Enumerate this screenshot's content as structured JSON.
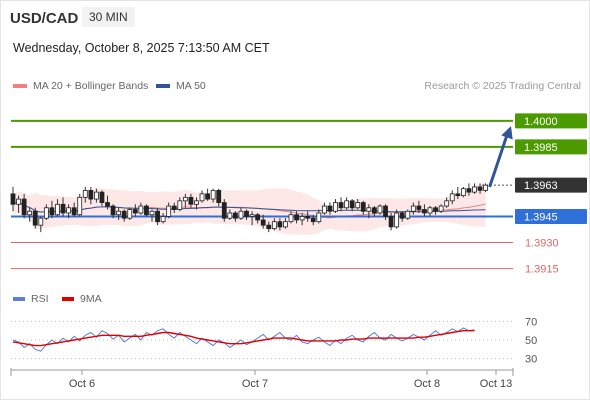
{
  "header": {
    "symbol": "USD/CAD",
    "interval": "30 MIN",
    "datetime": "Wednesday, October 8, 2025 7:13:50 AM CET",
    "credit": "Research © 2025 Trading Central"
  },
  "legend": {
    "ma20_label": "MA 20 + Bollinger Bands",
    "ma20_color": "#f08080",
    "ma50_label": "MA 50",
    "ma50_color": "#2f5597"
  },
  "rsi_legend": {
    "rsi_label": "RSI",
    "rsi_color": "#5b7fd6",
    "ma9_label": "9MA",
    "ma9_color": "#e00000"
  },
  "chart_data": [
    {
      "type": "candlestick",
      "ylim": [
        1.3905,
        1.4012
      ],
      "current_price": 1.3963,
      "x_ticks": [
        "Oct 6",
        "Oct 7",
        "Oct 8",
        "Oct 13"
      ],
      "levels": [
        {
          "label": "1.4000",
          "value": 1.4,
          "kind": "resistance",
          "color": "#4a9a00"
        },
        {
          "label": "1.3985",
          "value": 1.3985,
          "kind": "resistance",
          "color": "#4a9a00"
        },
        {
          "label": "1.3963",
          "value": 1.3963,
          "kind": "current",
          "color": "#333333"
        },
        {
          "label": "1.3945",
          "value": 1.3945,
          "kind": "pivot",
          "color": "#2e6fd8"
        },
        {
          "label": "1.3930",
          "value": 1.393,
          "kind": "support",
          "color": "#e06666"
        },
        {
          "label": "1.3915",
          "value": 1.3915,
          "kind": "support",
          "color": "#e06666"
        }
      ],
      "arrow": {
        "from": 1.3962,
        "to": 1.3997,
        "direction": "up"
      },
      "candles": [
        [
          1.3958,
          1.3962,
          1.3948,
          1.3952
        ],
        [
          1.3952,
          1.3957,
          1.3947,
          1.3955
        ],
        [
          1.3955,
          1.3958,
          1.3944,
          1.3946
        ],
        [
          1.3946,
          1.395,
          1.3942,
          1.3948
        ],
        [
          1.3948,
          1.395,
          1.3938,
          1.394
        ],
        [
          1.394,
          1.3945,
          1.3936,
          1.3944
        ],
        [
          1.3944,
          1.3952,
          1.3943,
          1.395
        ],
        [
          1.395,
          1.3954,
          1.3944,
          1.3946
        ],
        [
          1.3946,
          1.3955,
          1.3945,
          1.3952
        ],
        [
          1.3952,
          1.3956,
          1.3945,
          1.3947
        ],
        [
          1.3947,
          1.3952,
          1.3944,
          1.395
        ],
        [
          1.395,
          1.3953,
          1.3945,
          1.3946
        ],
        [
          1.3946,
          1.3958,
          1.3945,
          1.3956
        ],
        [
          1.3956,
          1.3962,
          1.3953,
          1.396
        ],
        [
          1.396,
          1.3962,
          1.3952,
          1.3955
        ],
        [
          1.3955,
          1.3961,
          1.3953,
          1.3959
        ],
        [
          1.3959,
          1.396,
          1.3951,
          1.3953
        ],
        [
          1.3953,
          1.3957,
          1.3949,
          1.3951
        ],
        [
          1.3951,
          1.3952,
          1.3944,
          1.3946
        ],
        [
          1.3946,
          1.395,
          1.3943,
          1.3948
        ],
        [
          1.3948,
          1.3949,
          1.3942,
          1.3944
        ],
        [
          1.3944,
          1.395,
          1.3943,
          1.3949
        ],
        [
          1.3949,
          1.3952,
          1.3945,
          1.3947
        ],
        [
          1.3947,
          1.3953,
          1.3946,
          1.3951
        ],
        [
          1.3951,
          1.3952,
          1.3945,
          1.3946
        ],
        [
          1.3946,
          1.3949,
          1.3942,
          1.3948
        ],
        [
          1.3948,
          1.395,
          1.394,
          1.3942
        ],
        [
          1.3942,
          1.3947,
          1.3941,
          1.3945
        ],
        [
          1.3945,
          1.3953,
          1.3944,
          1.3951
        ],
        [
          1.3951,
          1.3953,
          1.3947,
          1.3949
        ],
        [
          1.3949,
          1.3956,
          1.3948,
          1.3954
        ],
        [
          1.3954,
          1.3958,
          1.395,
          1.3956
        ],
        [
          1.3956,
          1.3958,
          1.395,
          1.3952
        ],
        [
          1.3952,
          1.3956,
          1.3949,
          1.3954
        ],
        [
          1.3954,
          1.396,
          1.3953,
          1.3958
        ],
        [
          1.3958,
          1.3961,
          1.3954,
          1.3955
        ],
        [
          1.3955,
          1.3961,
          1.3953,
          1.396
        ],
        [
          1.396,
          1.3961,
          1.3951,
          1.3953
        ],
        [
          1.3953,
          1.3955,
          1.3942,
          1.3944
        ],
        [
          1.3944,
          1.3949,
          1.3943,
          1.3947
        ],
        [
          1.3947,
          1.3948,
          1.3942,
          1.3944
        ],
        [
          1.3944,
          1.395,
          1.3943,
          1.3948
        ],
        [
          1.3948,
          1.3949,
          1.3943,
          1.3945
        ],
        [
          1.3945,
          1.3948,
          1.394,
          1.3946
        ],
        [
          1.3946,
          1.3947,
          1.3941,
          1.3943
        ],
        [
          1.3943,
          1.3946,
          1.3938,
          1.394
        ],
        [
          1.394,
          1.3942,
          1.3936,
          1.3938
        ],
        [
          1.3938,
          1.3944,
          1.3937,
          1.3942
        ],
        [
          1.3942,
          1.3944,
          1.3937,
          1.3939
        ],
        [
          1.3939,
          1.3944,
          1.3938,
          1.3942
        ],
        [
          1.3942,
          1.3948,
          1.3941,
          1.3946
        ],
        [
          1.3946,
          1.3948,
          1.3941,
          1.3943
        ],
        [
          1.3943,
          1.3947,
          1.394,
          1.3945
        ],
        [
          1.3945,
          1.3948,
          1.3942,
          1.3944
        ],
        [
          1.3944,
          1.3946,
          1.394,
          1.3942
        ],
        [
          1.3942,
          1.3949,
          1.3941,
          1.3947
        ],
        [
          1.3947,
          1.3953,
          1.3946,
          1.3951
        ],
        [
          1.3951,
          1.3953,
          1.3946,
          1.3948
        ],
        [
          1.3948,
          1.3955,
          1.3947,
          1.3953
        ],
        [
          1.3953,
          1.3956,
          1.3948,
          1.395
        ],
        [
          1.395,
          1.3956,
          1.3949,
          1.3954
        ],
        [
          1.3954,
          1.3955,
          1.3948,
          1.395
        ],
        [
          1.395,
          1.3955,
          1.3949,
          1.3953
        ],
        [
          1.3953,
          1.3954,
          1.3946,
          1.3948
        ],
        [
          1.3948,
          1.3952,
          1.3944,
          1.395
        ],
        [
          1.395,
          1.3951,
          1.3945,
          1.3947
        ],
        [
          1.3947,
          1.3952,
          1.3946,
          1.3951
        ],
        [
          1.3951,
          1.3952,
          1.3943,
          1.3945
        ],
        [
          1.3945,
          1.3947,
          1.3937,
          1.3939
        ],
        [
          1.3939,
          1.3949,
          1.3938,
          1.3947
        ],
        [
          1.3947,
          1.3948,
          1.3942,
          1.3944
        ],
        [
          1.3944,
          1.3949,
          1.3943,
          1.3948
        ],
        [
          1.3948,
          1.3953,
          1.3946,
          1.3951
        ],
        [
          1.3951,
          1.3954,
          1.3947,
          1.3949
        ],
        [
          1.3949,
          1.3952,
          1.3945,
          1.3947
        ],
        [
          1.3947,
          1.3951,
          1.3945,
          1.395
        ],
        [
          1.395,
          1.3951,
          1.3946,
          1.3948
        ],
        [
          1.3948,
          1.3952,
          1.3947,
          1.3951
        ],
        [
          1.3951,
          1.3956,
          1.395,
          1.3954
        ],
        [
          1.3954,
          1.396,
          1.3952,
          1.3958
        ],
        [
          1.3958,
          1.3962,
          1.3955,
          1.3957
        ],
        [
          1.3957,
          1.3962,
          1.3956,
          1.3961
        ],
        [
          1.3961,
          1.3964,
          1.3957,
          1.3959
        ],
        [
          1.3959,
          1.3964,
          1.3958,
          1.3962
        ],
        [
          1.3962,
          1.3964,
          1.3958,
          1.396
        ],
        [
          1.396,
          1.3964,
          1.3959,
          1.3963
        ]
      ]
    },
    {
      "type": "line",
      "name": "RSI",
      "ylim": [
        20,
        80
      ],
      "y_ticks": [
        70,
        50,
        30
      ],
      "series": [
        {
          "name": "RSI",
          "color": "#5b7fd6",
          "values": [
            50,
            48,
            42,
            46,
            40,
            38,
            45,
            50,
            46,
            52,
            48,
            54,
            49,
            55,
            58,
            53,
            60,
            57,
            51,
            55,
            48,
            52,
            56,
            50,
            58,
            55,
            60,
            62,
            56,
            52,
            58,
            54,
            50,
            46,
            52,
            48,
            44,
            50,
            47,
            42,
            46,
            50,
            45,
            48,
            52,
            56,
            50,
            54,
            58,
            52,
            50,
            55,
            48,
            46,
            50,
            53,
            48,
            44,
            50,
            46,
            52,
            55,
            50,
            48,
            54,
            58,
            52,
            50,
            56,
            52,
            49,
            52,
            56,
            53,
            50,
            55,
            60,
            55,
            58,
            62,
            59,
            63,
            60,
            61
          ]
        },
        {
          "name": "9MA",
          "color": "#e00000",
          "values": [
            48,
            47,
            46,
            45,
            44,
            44,
            45,
            46,
            47,
            48,
            49,
            50,
            51,
            52,
            53,
            54,
            55,
            55,
            55,
            55,
            54,
            54,
            54,
            54,
            55,
            56,
            57,
            58,
            58,
            57,
            56,
            55,
            54,
            52,
            51,
            50,
            49,
            48,
            47,
            46,
            46,
            46,
            47,
            48,
            49,
            50,
            51,
            52,
            52,
            52,
            52,
            51,
            50,
            49,
            49,
            49,
            49,
            49,
            49,
            50,
            50,
            51,
            51,
            51,
            52,
            52,
            52,
            52,
            52,
            52,
            52,
            52,
            52,
            53,
            53,
            54,
            55,
            56,
            57,
            58,
            59,
            60,
            60,
            60
          ]
        }
      ]
    }
  ]
}
